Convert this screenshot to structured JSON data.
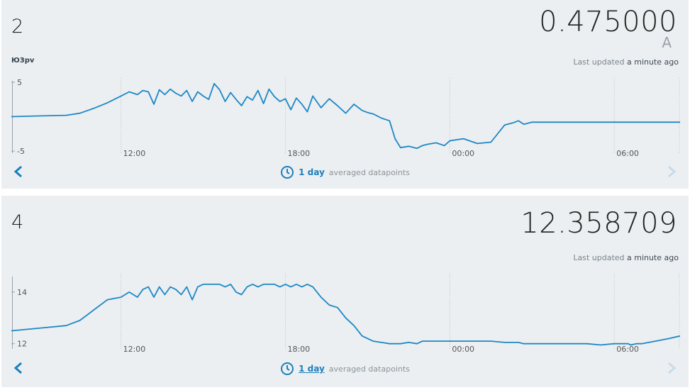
{
  "panels": [
    {
      "title": "2",
      "value": "0.475000",
      "unit": "A",
      "subtitle": "Ю3pv",
      "last_updated_prefix": "Last updated",
      "last_updated_ago": "a minute ago",
      "range_label": "1 day",
      "range_suffix": "averaged datapoints"
    },
    {
      "title": "4",
      "value": "12.358709",
      "unit": "",
      "subtitle": "",
      "last_updated_prefix": "Last updated",
      "last_updated_ago": "a minute ago",
      "range_label": "1 day",
      "range_suffix": "averaged datapoints"
    }
  ],
  "icons": {
    "prev": "chevron-left-icon",
    "next": "chevron-right-icon",
    "clock": "clock-icon"
  },
  "colors": {
    "line": "#1d87c6",
    "accent": "#1d7fbd",
    "panel_bg": "#eceff1",
    "next_disabled": "#c7dceb"
  },
  "chart_data": [
    {
      "type": "line",
      "title": "",
      "xlabel": "",
      "ylabel": "",
      "x_ticks": [
        "12:00",
        "18:00",
        "00:00",
        "06:00"
      ],
      "x_tick_hours": [
        12,
        18,
        24,
        30
      ],
      "x_range_hours": [
        8.0,
        32.4
      ],
      "ylim": [
        -5.3,
        5.2
      ],
      "y_ticks": [
        5,
        -5
      ],
      "y_tick_labels": [
        "5",
        "-5"
      ],
      "series": [
        {
          "x_hours": [
            8.0,
            9.0,
            10.0,
            10.5,
            11.0,
            11.5,
            12.0,
            12.3,
            12.6,
            12.8,
            13.0,
            13.2,
            13.4,
            13.6,
            13.8,
            14.0,
            14.2,
            14.4,
            14.6,
            14.8,
            15.0,
            15.2,
            15.4,
            15.6,
            15.8,
            16.0,
            16.2,
            16.4,
            16.6,
            16.8,
            17.0,
            17.2,
            17.4,
            17.6,
            17.8,
            18.0,
            18.2,
            18.4,
            18.6,
            18.8,
            19.0,
            19.3,
            19.6,
            19.9,
            20.2,
            20.5,
            20.8,
            21.0,
            21.2,
            21.5,
            21.8,
            22.0,
            22.2,
            22.5,
            22.8,
            23.0,
            23.2,
            23.5,
            23.8,
            24.0,
            24.5,
            25.0,
            25.5,
            26.0,
            26.3,
            26.5,
            26.7,
            27.0,
            27.5,
            28.0,
            28.5,
            29.0,
            29.5,
            30.0,
            30.4,
            30.5,
            30.6,
            30.8,
            31.0,
            31.5,
            32.0,
            32.4
          ],
          "y": [
            0.0,
            0.1,
            0.2,
            0.5,
            1.2,
            2.0,
            3.0,
            3.6,
            3.2,
            3.8,
            3.6,
            1.8,
            3.9,
            3.2,
            4.0,
            3.4,
            3.0,
            3.8,
            2.2,
            3.6,
            3.0,
            2.5,
            4.8,
            3.9,
            2.2,
            3.5,
            2.5,
            1.6,
            2.9,
            2.4,
            3.8,
            1.9,
            4.0,
            2.9,
            2.2,
            2.6,
            1.0,
            2.7,
            1.8,
            0.7,
            3.0,
            1.3,
            2.6,
            1.6,
            0.5,
            1.8,
            0.9,
            0.6,
            0.4,
            -0.2,
            -0.6,
            -3.2,
            -4.5,
            -4.3,
            -4.6,
            -4.2,
            -4.0,
            -3.8,
            -4.2,
            -3.5,
            -3.2,
            -3.9,
            -3.7,
            -1.2,
            -0.9,
            -0.6,
            -1.1,
            -0.8,
            -0.8,
            -0.8,
            -0.8,
            -0.8,
            -0.8,
            -0.8,
            -0.8,
            -0.8,
            -0.8,
            -0.8,
            -0.8,
            -0.8,
            -0.8,
            -0.8
          ]
        }
      ]
    },
    {
      "type": "line",
      "title": "",
      "xlabel": "",
      "ylabel": "",
      "x_ticks": [
        "12:00",
        "18:00",
        "00:00",
        "06:00"
      ],
      "x_tick_hours": [
        12,
        18,
        24,
        30
      ],
      "x_range_hours": [
        8.0,
        32.4
      ],
      "ylim": [
        11.8,
        14.6
      ],
      "y_ticks": [
        14,
        12
      ],
      "y_tick_labels": [
        "14",
        "12"
      ],
      "series": [
        {
          "x_hours": [
            8.0,
            9.0,
            10.0,
            10.5,
            11.0,
            11.5,
            12.0,
            12.3,
            12.6,
            12.8,
            13.0,
            13.2,
            13.4,
            13.6,
            13.8,
            14.0,
            14.2,
            14.4,
            14.6,
            14.8,
            15.0,
            15.2,
            15.4,
            15.6,
            15.8,
            16.0,
            16.2,
            16.4,
            16.6,
            16.8,
            17.0,
            17.2,
            17.4,
            17.6,
            17.8,
            18.0,
            18.2,
            18.4,
            18.6,
            18.8,
            19.0,
            19.3,
            19.6,
            19.9,
            20.2,
            20.5,
            20.8,
            21.0,
            21.2,
            21.5,
            21.8,
            22.0,
            22.2,
            22.5,
            22.8,
            23.0,
            23.2,
            23.5,
            23.8,
            24.0,
            24.5,
            25.0,
            25.5,
            26.0,
            26.3,
            26.5,
            26.7,
            27.0,
            27.5,
            28.0,
            28.5,
            29.0,
            29.5,
            30.0,
            30.4,
            30.5,
            30.6,
            30.8,
            31.0,
            31.5,
            32.0,
            32.4
          ],
          "y": [
            12.5,
            12.6,
            12.7,
            12.9,
            13.3,
            13.7,
            13.8,
            14.0,
            13.8,
            14.1,
            14.2,
            13.8,
            14.2,
            13.9,
            14.2,
            14.1,
            13.9,
            14.2,
            13.7,
            14.2,
            14.3,
            14.3,
            14.3,
            14.3,
            14.2,
            14.3,
            14.0,
            13.9,
            14.2,
            14.3,
            14.2,
            14.3,
            14.3,
            14.3,
            14.2,
            14.3,
            14.2,
            14.3,
            14.2,
            14.3,
            14.2,
            13.8,
            13.5,
            13.4,
            13.0,
            12.7,
            12.3,
            12.2,
            12.1,
            12.05,
            12.0,
            12.0,
            12.0,
            12.05,
            12.0,
            12.1,
            12.1,
            12.1,
            12.1,
            12.1,
            12.1,
            12.1,
            12.1,
            12.05,
            12.05,
            12.05,
            12.0,
            12.0,
            12.0,
            12.0,
            12.0,
            12.0,
            11.95,
            12.0,
            12.0,
            12.0,
            11.95,
            12.0,
            12.0,
            12.1,
            12.2,
            12.3
          ]
        }
      ]
    }
  ]
}
